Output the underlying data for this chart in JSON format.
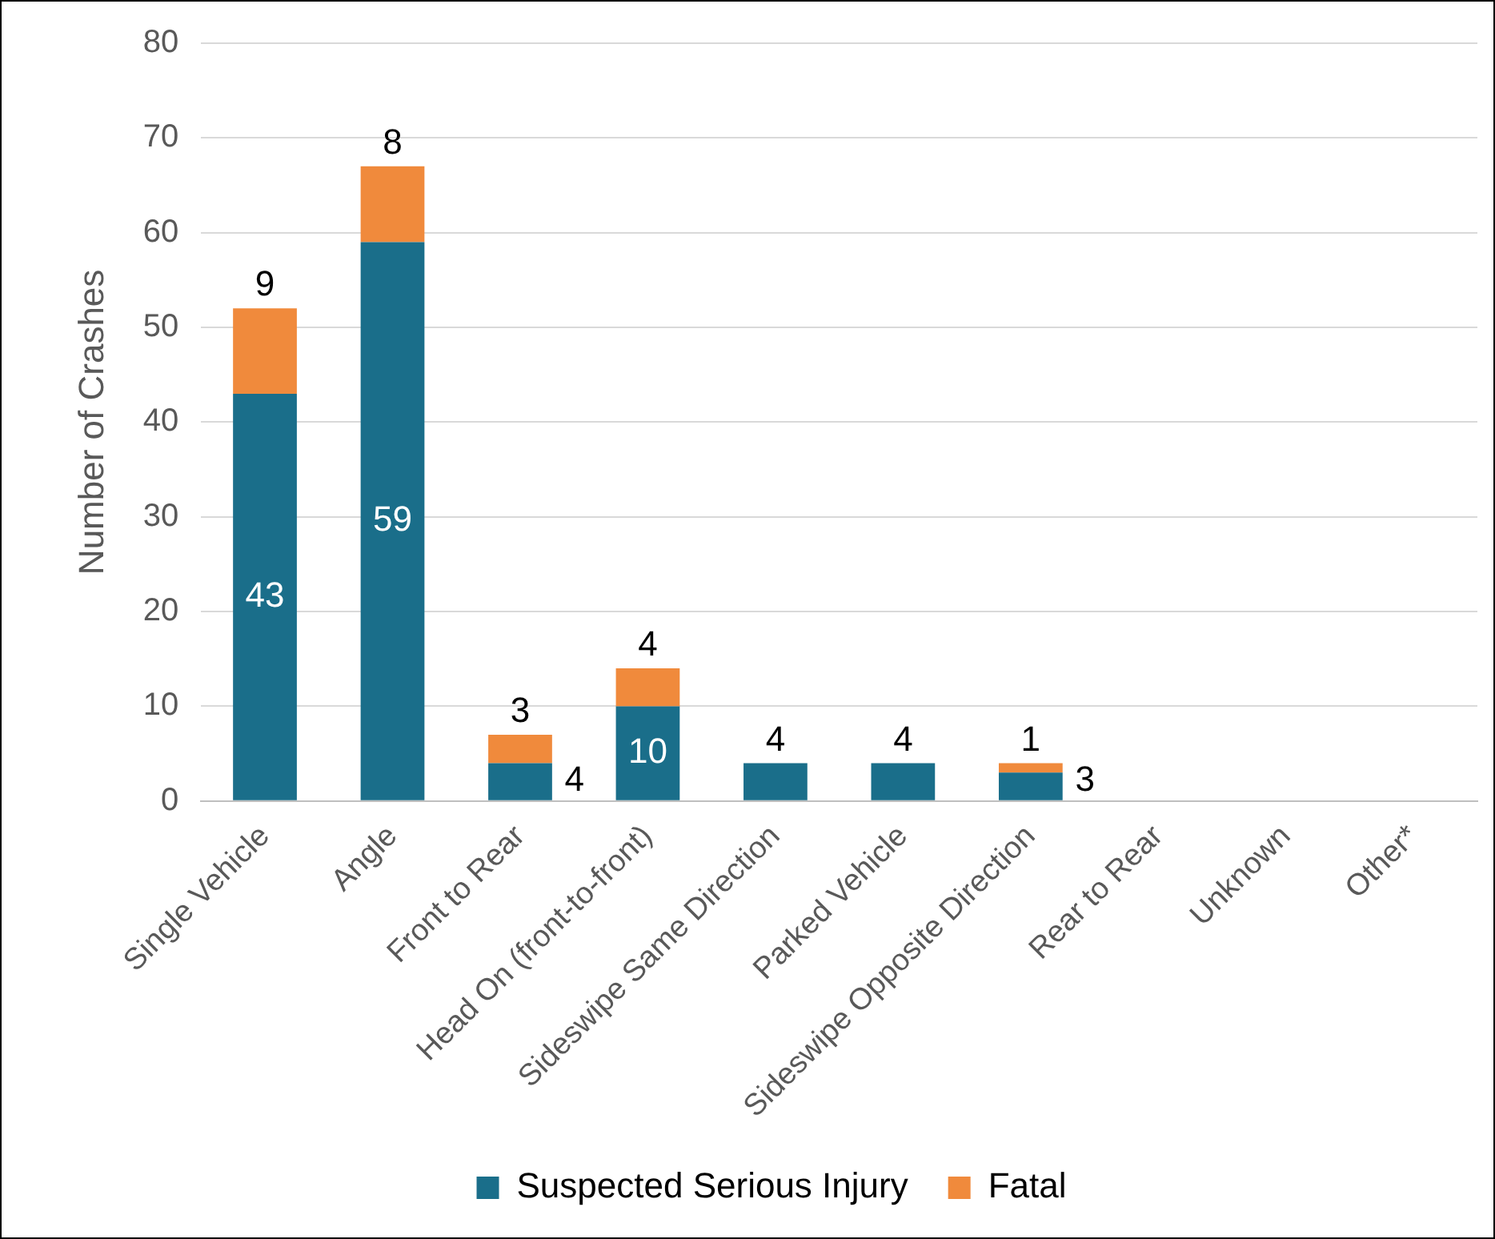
{
  "chart_data": {
    "type": "bar",
    "ylabel": "Number of Crashes",
    "stacked": true,
    "grid": "y",
    "legend": "bottom",
    "categories": [
      "Single Vehicle",
      "Angle",
      "Front to Rear",
      "Head On (front-to-front)",
      "Sideswipe Same Direction",
      "Parked Vehicle",
      "Sideswipe Opposite Direction",
      "Rear to Rear",
      "Unknown",
      "Other*"
    ],
    "ylim": [
      0,
      80
    ],
    "yticks": [
      0,
      10,
      20,
      30,
      40,
      50,
      60,
      70,
      80
    ],
    "series": [
      {
        "name": "Suspected Serious Injury",
        "color": "#1a6e8a",
        "values": [
          43,
          59,
          4,
          10,
          4,
          4,
          3,
          0,
          0,
          0
        ],
        "value_labels": [
          "43",
          "59",
          "4",
          "10",
          "4",
          "4",
          "3",
          null,
          null,
          null
        ]
      },
      {
        "name": "Fatal",
        "color": "#f08a3c",
        "values": [
          9,
          8,
          3,
          4,
          0,
          0,
          1,
          0,
          0,
          0
        ],
        "value_labels": [
          "9",
          "8",
          "3",
          "4",
          null,
          null,
          "1",
          null,
          null,
          null
        ]
      }
    ]
  }
}
